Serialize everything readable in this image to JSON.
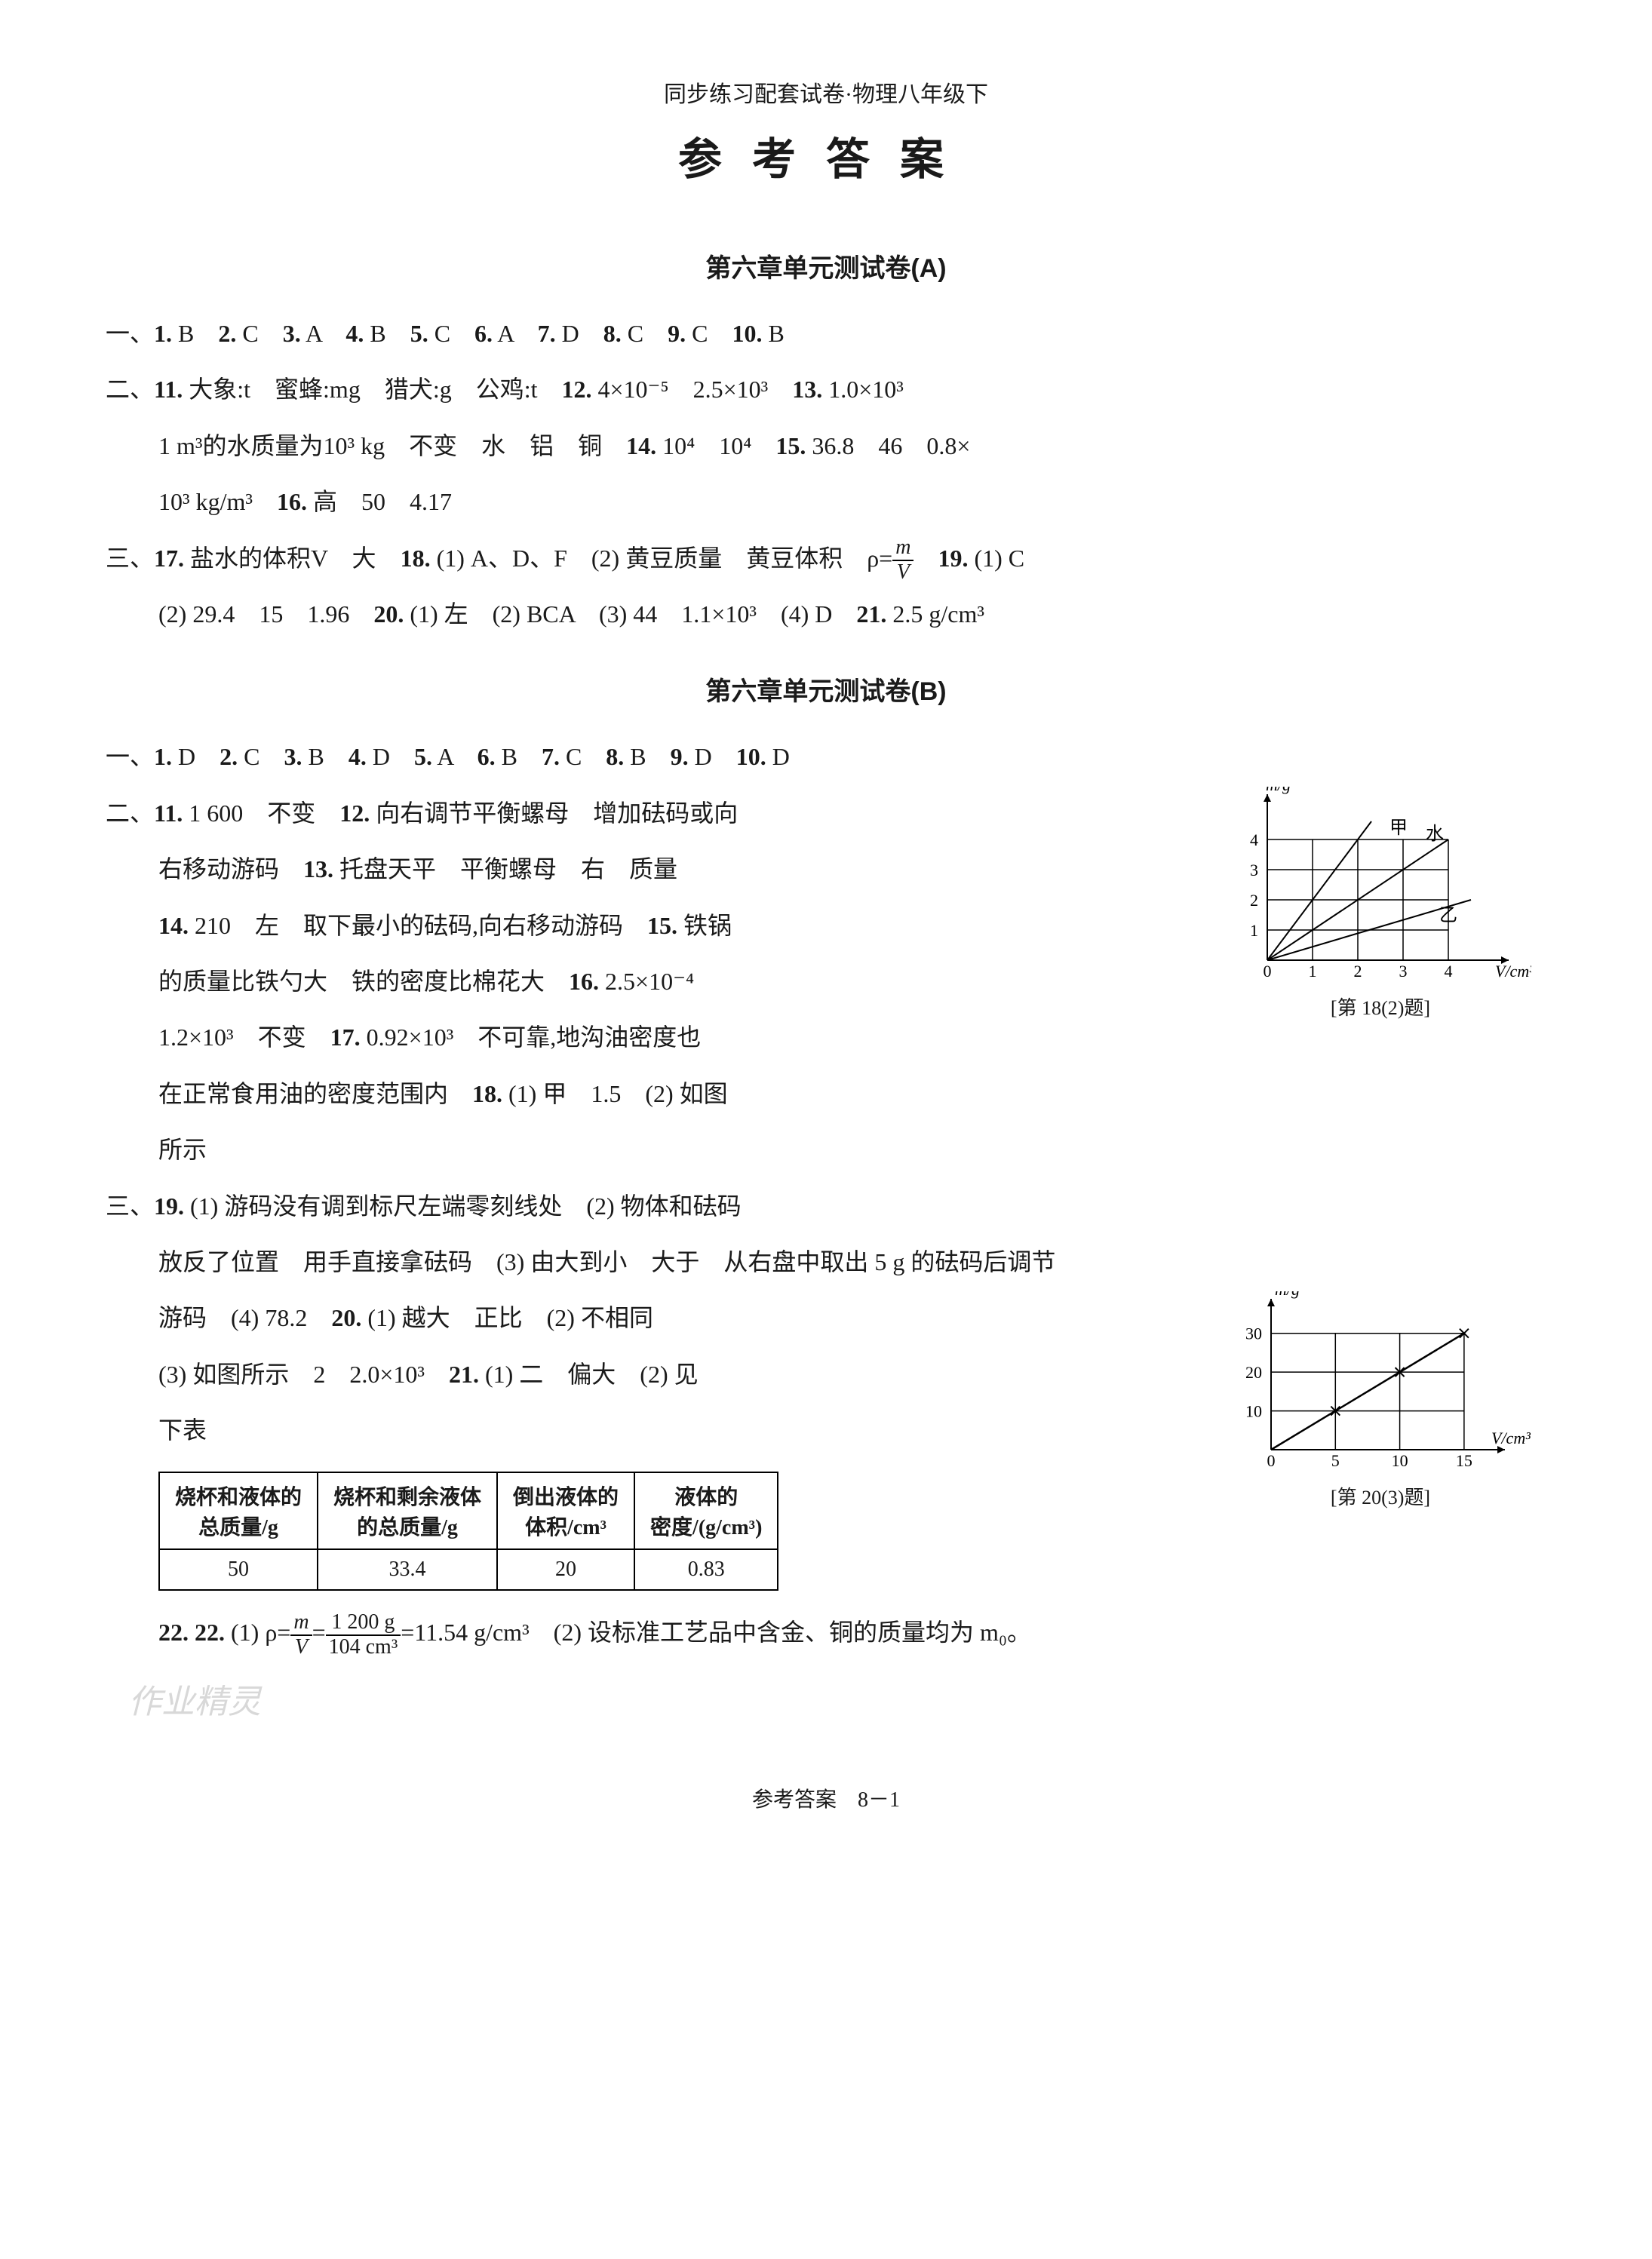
{
  "header": {
    "subtitle": "同步练习配套试卷·物理八年级下",
    "title": "参考答案"
  },
  "chapterA": {
    "title": "第六章单元测试卷(A)",
    "q1": "一、1. B　2. C　3. A　4. B　5. C　6. A　7. D　8. C　9. C　10. B",
    "q2a": "二、11. 大象:t　蜜蜂:mg　猎犬:g　公鸡:t　12. 4×10⁻⁵　2.5×10³　13. 1.0×10³",
    "q2b": "1 m³的水质量为10³ kg　不变　水　铝　铜　14. 10⁴　10⁴　15. 36.8　46　0.8×",
    "q2c": "10³ kg/m³　16. 高　50　4.17",
    "q3a_pre": "三、17. 盐水的体积V　大　18. (1) A、D、F　(2) 黄豆质量　黄豆体积　ρ=",
    "q3a_post": "　19. (1) C",
    "frac_mv_num": "m",
    "frac_mv_den": "V",
    "q3b": "(2) 29.4　15　1.96　20. (1) 左　(2) BCA　(3) 44　1.1×10³　(4) D　21. 2.5 g/cm³"
  },
  "chapterB": {
    "title": "第六章单元测试卷(B)",
    "q1": "一、1. D　2. C　3. B　4. D　5. A　6. B　7. C　8. B　9. D　10. D",
    "q2a": "二、11. 1 600　不变　12. 向右调节平衡螺母　增加砝码或向",
    "q2b": "右移动游码　13. 托盘天平　平衡螺母　右　质量",
    "q2c": "14. 210　左　取下最小的砝码,向右移动游码　15. 铁锅",
    "q2d": "的质量比铁勺大　铁的密度比棉花大　16. 2.5×10⁻⁴",
    "q2e": "1.2×10³　不变　17. 0.92×10³　不可靠,地沟油密度也",
    "q2f": "在正常食用油的密度范围内　18. (1) 甲　1.5　(2) 如图",
    "q2g": "所示",
    "q3a": "三、19. (1) 游码没有调到标尺左端零刻线处　(2) 物体和砝码",
    "q3b": "放反了位置　用手直接拿砝码　(3) 由大到小　大于　从右盘中取出 5 g 的砝码后调节",
    "q3c": "游码　(4) 78.2　20. (1) 越大　正比　(2) 不相同",
    "q3d": "(3) 如图所示　2　2.0×10³　21. (1) 二　偏大　(2) 见",
    "q3e": "下表",
    "table": {
      "headers": [
        "烧杯和液体的\n总质量/g",
        "烧杯和剩余液体\n的总质量/g",
        "倒出液体的\n体积/cm³",
        "液体的\n密度/(g/cm³)"
      ],
      "row": [
        "50",
        "33.4",
        "20",
        "0.83"
      ]
    },
    "q22_pre": "22. (1) ρ=",
    "q22_frac1_num": "m",
    "q22_frac1_den": "V",
    "q22_mid": "=",
    "q22_frac2_num": "1 200 g",
    "q22_frac2_den": "104 cm³",
    "q22_post": "=11.54 g/cm³　(2) 设标准工艺品中含金、铜的质量均为 m₀。"
  },
  "chart1": {
    "type": "line",
    "ylabel": "m/g",
    "xlabel": "V/cm³",
    "xlim": [
      0,
      5
    ],
    "ylim": [
      0,
      5
    ],
    "xticks": [
      0,
      1,
      2,
      3,
      4
    ],
    "yticks": [
      1,
      2,
      3,
      4
    ],
    "grid_color": "#000000",
    "background_color": "#ffffff",
    "lines": [
      {
        "label": "甲",
        "points": [
          [
            0,
            0
          ],
          [
            2.3,
            4.6
          ]
        ],
        "label_pos": [
          2.7,
          4.2
        ]
      },
      {
        "label": "水",
        "points": [
          [
            0,
            0
          ],
          [
            4,
            4
          ]
        ],
        "label_pos": [
          3.5,
          4.0
        ]
      },
      {
        "label": "乙",
        "points": [
          [
            0,
            0
          ],
          [
            4.5,
            2.0
          ]
        ],
        "label_pos": [
          3.8,
          1.3
        ]
      }
    ],
    "caption": "[第 18(2)题]"
  },
  "chart2": {
    "type": "line",
    "ylabel": "m/g",
    "xlabel": "V/cm³",
    "xlim": [
      0,
      17
    ],
    "ylim": [
      0,
      35
    ],
    "xticks": [
      0,
      5,
      10,
      15
    ],
    "yticks": [
      10,
      20,
      30
    ],
    "grid_color": "#000000",
    "background_color": "#ffffff",
    "lines": [
      {
        "points": [
          [
            0,
            0
          ],
          [
            15,
            30
          ]
        ]
      }
    ],
    "markers": [
      [
        5,
        10
      ],
      [
        10,
        20
      ],
      [
        15,
        30
      ]
    ],
    "caption": "[第 20(3)题]"
  },
  "footer": {
    "pagenum": "参考答案　8－1",
    "watermark": "作业精灵"
  }
}
